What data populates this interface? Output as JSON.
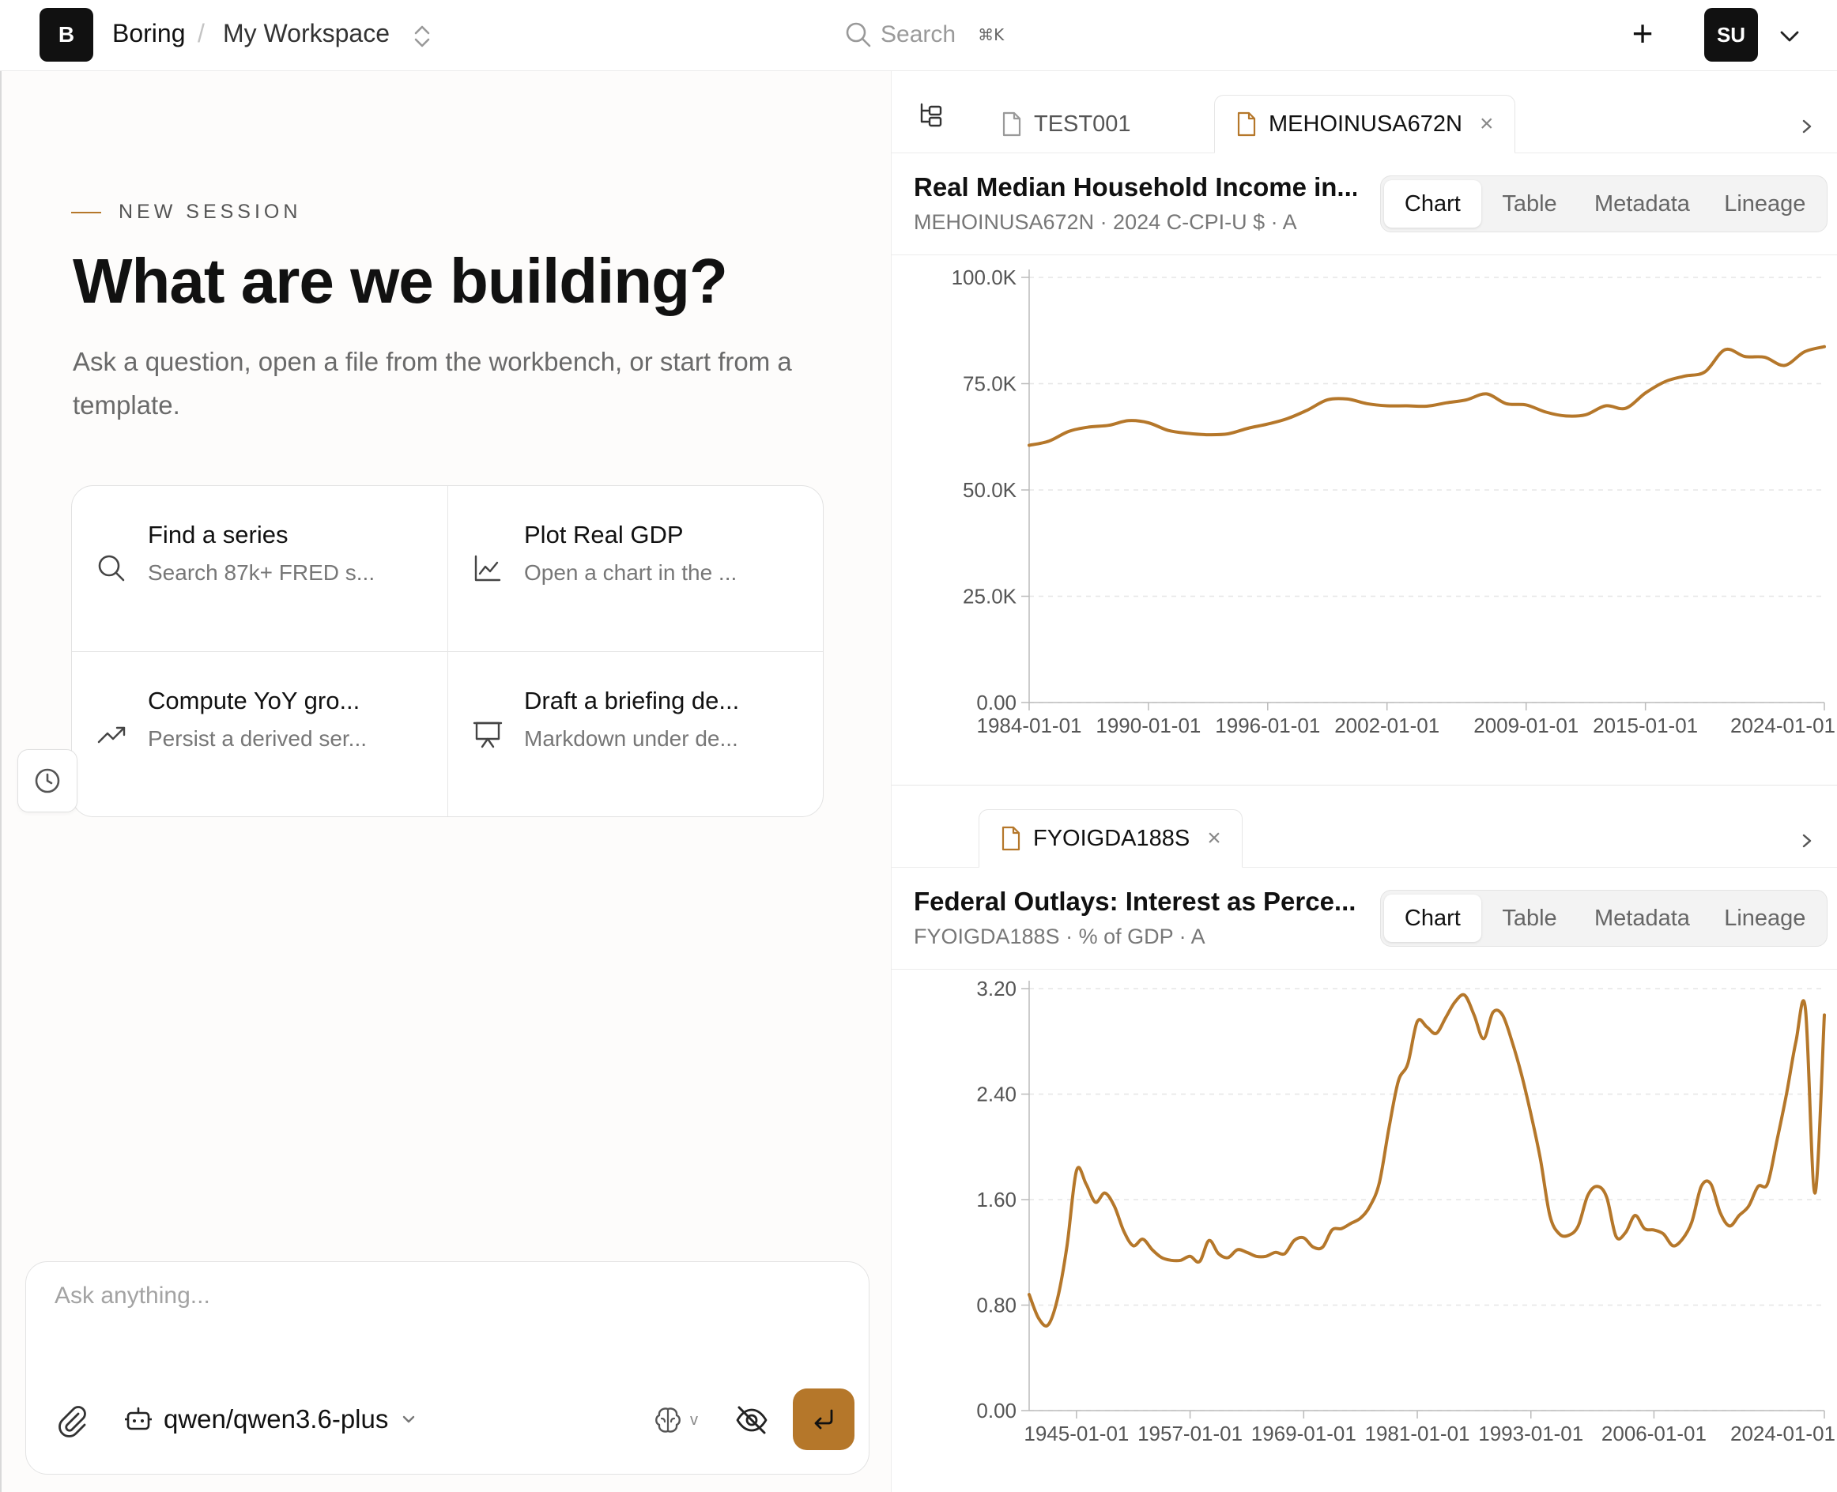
{
  "header": {
    "logo_letter": "B",
    "org": "Boring",
    "separator": "/",
    "workspace": "My Workspace",
    "search_label": "Search",
    "search_shortcut": "⌘K",
    "new_label": "+",
    "avatar_initials": "SU"
  },
  "session": {
    "eyebrow": "NEW SESSION",
    "headline": "What are we building?",
    "subline": "Ask a question, open a file from the workbench, or start from a template."
  },
  "cards": [
    {
      "icon": "search-icon",
      "title": "Find a series",
      "subtitle": "Search 87k+ FRED s..."
    },
    {
      "icon": "line-chart-icon",
      "title": "Plot Real GDP",
      "subtitle": "Open a chart in the ..."
    },
    {
      "icon": "trending-up-icon",
      "title": "Compute YoY gro...",
      "subtitle": "Persist a derived ser..."
    },
    {
      "icon": "presentation-icon",
      "title": "Draft a briefing de...",
      "subtitle": "Markdown under de..."
    }
  ],
  "composer": {
    "placeholder": "Ask anything...",
    "model": "qwen/qwen3.6-plus",
    "reasoning_caret": "v"
  },
  "panes": [
    {
      "tabs": [
        {
          "label": "TEST001",
          "active": false,
          "closable": false
        },
        {
          "label": "MEHOINUSA672N",
          "active": true,
          "closable": true
        }
      ],
      "title": "Real Median Household Income in...",
      "meta": "MEHOINUSA672N · 2024 C-CPI-U $ · A",
      "view_options": [
        "Chart",
        "Table",
        "Metadata",
        "Lineage"
      ],
      "active_view": "Chart"
    },
    {
      "tabs": [
        {
          "label": "FYOIGDA188S",
          "active": true,
          "closable": true
        }
      ],
      "title": "Federal Outlays: Interest as Perce...",
      "meta": "FYOIGDA188S · % of GDP · A",
      "view_options": [
        "Chart",
        "Table",
        "Metadata",
        "Lineage"
      ],
      "active_view": "Chart"
    }
  ],
  "chart_data": [
    {
      "type": "line",
      "title": "",
      "xlabel": "",
      "ylabel": "",
      "series_color": "#b5772a",
      "grid": true,
      "ylim": [
        0,
        100000
      ],
      "y_ticks": [
        "0.00",
        "25.0K",
        "50.0K",
        "75.0K",
        "100.0K"
      ],
      "y_tick_values": [
        0,
        25000,
        50000,
        75000,
        100000
      ],
      "x_ticks": [
        "1984-01-01",
        "1990-01-01",
        "1996-01-01",
        "2002-01-01",
        "2009-01-01",
        "2015-01-01",
        "2024-01-01"
      ],
      "x_tick_years": [
        1984,
        1990,
        1996,
        2002,
        2009,
        2015,
        2024
      ],
      "xlim": [
        1984,
        2024
      ],
      "x": [
        1984,
        1985,
        1986,
        1987,
        1988,
        1989,
        1990,
        1991,
        1992,
        1993,
        1994,
        1995,
        1996,
        1997,
        1998,
        1999,
        2000,
        2001,
        2002,
        2003,
        2004,
        2005,
        2006,
        2007,
        2008,
        2009,
        2010,
        2011,
        2012,
        2013,
        2014,
        2015,
        2016,
        2017,
        2018,
        2019,
        2020,
        2021,
        2022,
        2023,
        2024
      ],
      "values": [
        60500,
        61500,
        63800,
        64800,
        65200,
        66300,
        65800,
        64000,
        63300,
        63000,
        63200,
        64500,
        65500,
        66800,
        68800,
        71200,
        71400,
        70300,
        69800,
        69800,
        69700,
        70500,
        71200,
        72600,
        70300,
        70000,
        68300,
        67400,
        67700,
        69800,
        69200,
        72800,
        75500,
        76800,
        77800,
        83000,
        81400,
        81200,
        79300,
        82500,
        83700
      ]
    },
    {
      "type": "line",
      "title": "",
      "xlabel": "",
      "ylabel": "",
      "series_color": "#b5772a",
      "grid": true,
      "ylim": [
        0,
        3.2
      ],
      "y_ticks": [
        "0.00",
        "0.80",
        "1.60",
        "2.40",
        "3.20"
      ],
      "y_tick_values": [
        0,
        0.8,
        1.6,
        2.4,
        3.2
      ],
      "x_ticks": [
        "1945-01-01",
        "1957-01-01",
        "1969-01-01",
        "1981-01-01",
        "1993-01-01",
        "2006-01-01",
        "2024-01-01"
      ],
      "x_tick_years": [
        1945,
        1957,
        1969,
        1981,
        1993,
        2006,
        2024
      ],
      "xlim": [
        1940,
        2024
      ],
      "x": [
        1940,
        1941,
        1942,
        1943,
        1944,
        1945,
        1946,
        1947,
        1948,
        1949,
        1950,
        1951,
        1952,
        1953,
        1954,
        1955,
        1956,
        1957,
        1958,
        1959,
        1960,
        1961,
        1962,
        1963,
        1964,
        1965,
        1966,
        1967,
        1968,
        1969,
        1970,
        1971,
        1972,
        1973,
        1974,
        1975,
        1976,
        1977,
        1978,
        1979,
        1980,
        1981,
        1982,
        1983,
        1984,
        1985,
        1986,
        1987,
        1988,
        1989,
        1990,
        1991,
        1992,
        1993,
        1994,
        1995,
        1996,
        1997,
        1998,
        1999,
        2000,
        2001,
        2002,
        2003,
        2004,
        2005,
        2006,
        2007,
        2008,
        2009,
        2010,
        2011,
        2012,
        2013,
        2014,
        2015,
        2016,
        2017,
        2018,
        2019,
        2020,
        2021,
        2022,
        2023,
        2024
      ],
      "values": [
        0.88,
        0.7,
        0.65,
        0.85,
        1.25,
        1.82,
        1.72,
        1.58,
        1.65,
        1.55,
        1.36,
        1.25,
        1.3,
        1.22,
        1.16,
        1.14,
        1.14,
        1.17,
        1.13,
        1.29,
        1.19,
        1.16,
        1.22,
        1.2,
        1.17,
        1.17,
        1.2,
        1.19,
        1.29,
        1.31,
        1.24,
        1.24,
        1.37,
        1.38,
        1.42,
        1.46,
        1.55,
        1.73,
        2.14,
        2.5,
        2.63,
        2.95,
        2.91,
        2.86,
        2.98,
        3.1,
        3.15,
        3.0,
        2.82,
        3.02,
        3.0,
        2.8,
        2.55,
        2.25,
        1.91,
        1.48,
        1.34,
        1.33,
        1.4,
        1.63,
        1.7,
        1.62,
        1.32,
        1.35,
        1.48,
        1.38,
        1.37,
        1.34,
        1.25,
        1.3,
        1.43,
        1.7,
        1.72,
        1.5,
        1.4,
        1.48,
        1.55,
        1.7,
        1.72,
        2.05,
        2.4,
        2.8,
        3.05,
        1.65,
        3.0
      ]
    }
  ]
}
